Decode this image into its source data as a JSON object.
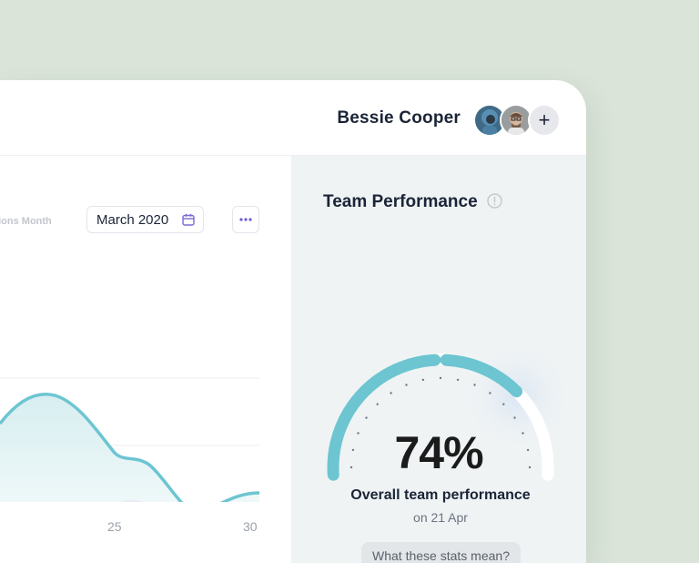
{
  "header": {
    "user_name": "Bessie Cooper",
    "add_label": "+"
  },
  "overview": {
    "period_label": "sions Month",
    "date_picker_value": "March 2020",
    "x_tick_labels": [
      "25",
      "30"
    ]
  },
  "team_performance": {
    "title": "Team Performance",
    "value": "74%",
    "percent": 74,
    "label": "Overall team performance",
    "date": "on 21 Apr",
    "help_button": "What these stats mean?"
  },
  "colors": {
    "accent": "#6dc5d1",
    "background": "#dae4d9",
    "panel": "#eff3f4"
  }
}
